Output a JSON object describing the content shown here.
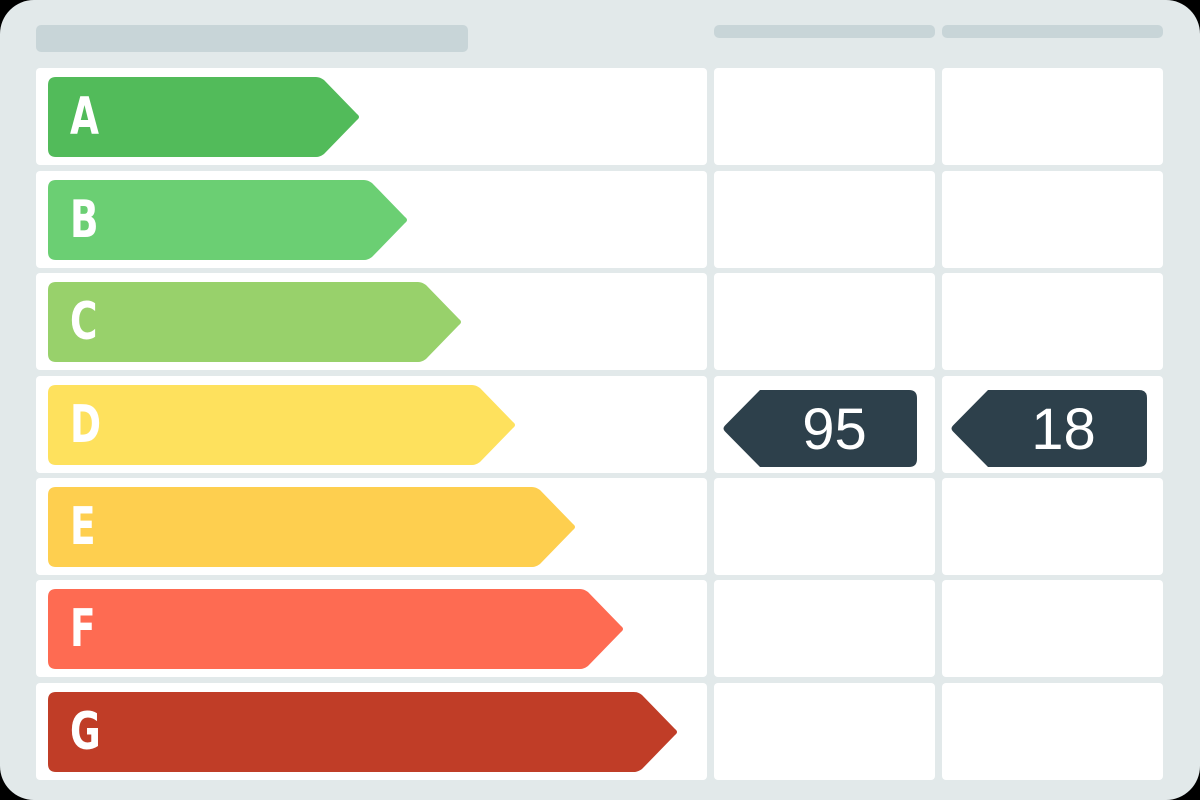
{
  "ratings": [
    {
      "label": "A",
      "color": "#52bb5a"
    },
    {
      "label": "B",
      "color": "#6bcf73"
    },
    {
      "label": "C",
      "color": "#98d16b"
    },
    {
      "label": "D",
      "color": "#fee15d"
    },
    {
      "label": "E",
      "color": "#fecf4f"
    },
    {
      "label": "F",
      "color": "#fe6b52"
    },
    {
      "label": "G",
      "color": "#c03d27"
    }
  ],
  "indicators": [
    {
      "value": "95",
      "rating": "D",
      "color": "#2d404b"
    },
    {
      "value": "18",
      "rating": "D",
      "color": "#2d404b"
    }
  ]
}
